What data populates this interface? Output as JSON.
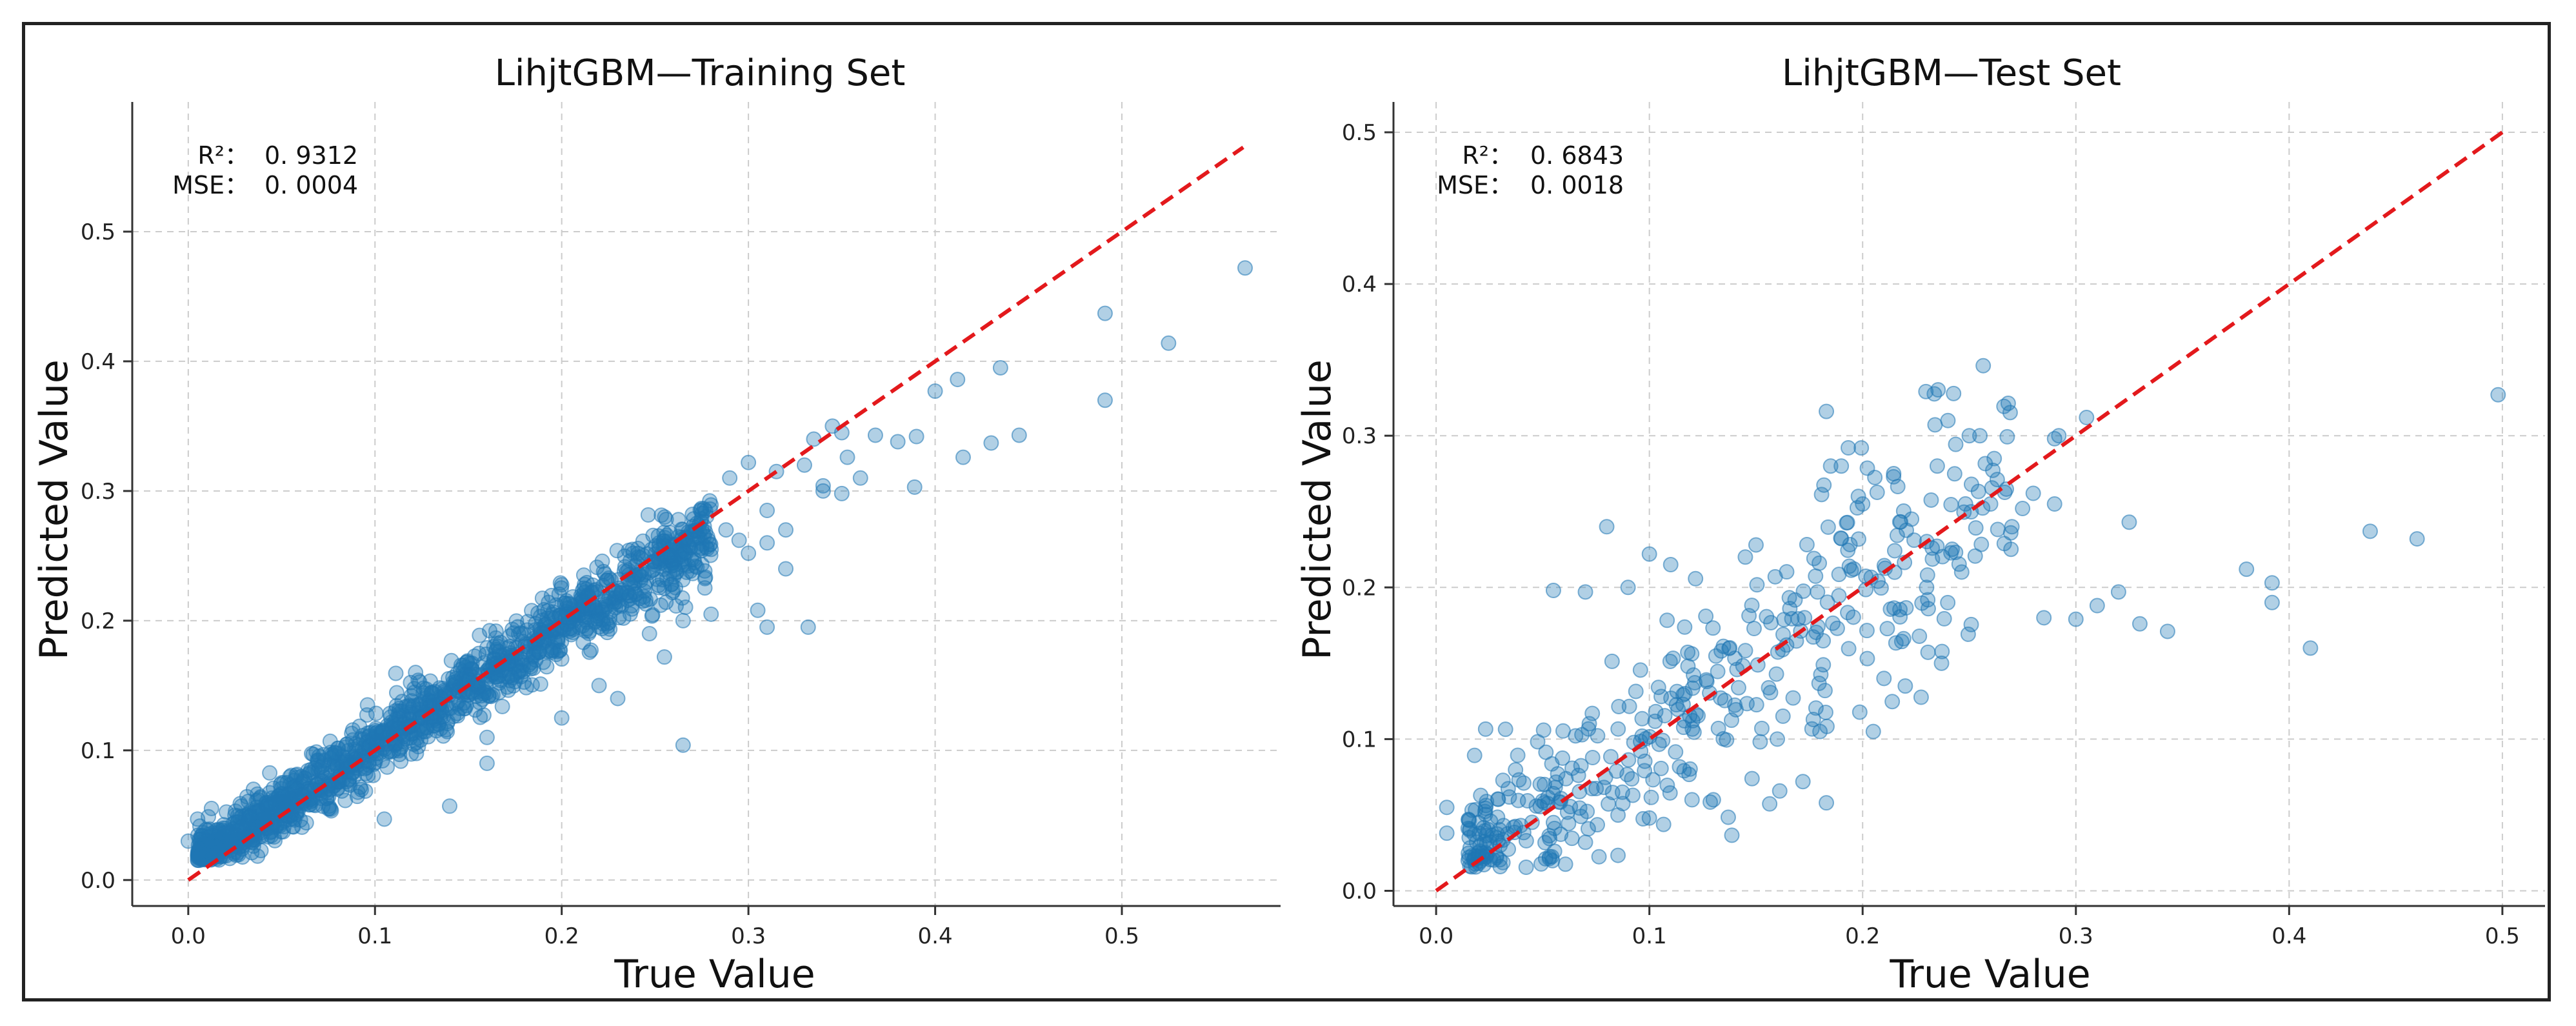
{
  "colors": {
    "point": "#1f77b4",
    "identity_line": "#e3191c"
  },
  "chart_data": [
    {
      "id": "train",
      "type": "scatter",
      "title": "LihjtGBM—Training Set",
      "xlabel": "True Value",
      "ylabel": "Predicted Value",
      "xlim": [
        -0.03,
        0.585
      ],
      "ylim": [
        -0.02,
        0.6
      ],
      "xticks": [
        "0.0",
        "0.1",
        "0.2",
        "0.3",
        "0.4",
        "0.5"
      ],
      "xtick_values": [
        0.0,
        0.1,
        0.2,
        0.3,
        0.4,
        0.5
      ],
      "yticks": [
        "0.0",
        "0.1",
        "0.2",
        "0.3",
        "0.4",
        "0.5"
      ],
      "ytick_values": [
        0.0,
        0.1,
        0.2,
        0.3,
        0.4,
        0.5
      ],
      "identity_line": [
        [
          0.0,
          0.0
        ],
        [
          0.565,
          0.565
        ]
      ],
      "grid": true,
      "stats": {
        "r2_label": "R²：",
        "r2_value": "0. 9312",
        "mse_label": "MSE：",
        "mse_value": "0. 0004"
      },
      "generated_cloud": {
        "n": 1600,
        "seed": 11,
        "x_min": 0.005,
        "x_max": 0.28,
        "noise": 0.013
      },
      "highlighted_points": [
        [
          0.566,
          0.472
        ],
        [
          0.525,
          0.414
        ],
        [
          0.491,
          0.437
        ],
        [
          0.491,
          0.37
        ],
        [
          0.435,
          0.395
        ],
        [
          0.445,
          0.343
        ],
        [
          0.43,
          0.337
        ],
        [
          0.415,
          0.326
        ],
        [
          0.412,
          0.386
        ],
        [
          0.4,
          0.377
        ],
        [
          0.389,
          0.303
        ],
        [
          0.39,
          0.342
        ],
        [
          0.38,
          0.338
        ],
        [
          0.368,
          0.343
        ],
        [
          0.36,
          0.31
        ],
        [
          0.353,
          0.326
        ],
        [
          0.35,
          0.298
        ],
        [
          0.34,
          0.304
        ],
        [
          0.345,
          0.35
        ],
        [
          0.335,
          0.34
        ],
        [
          0.33,
          0.32
        ],
        [
          0.332,
          0.195
        ],
        [
          0.305,
          0.208
        ],
        [
          0.31,
          0.195
        ],
        [
          0.31,
          0.285
        ],
        [
          0.32,
          0.27
        ],
        [
          0.3,
          0.252
        ],
        [
          0.295,
          0.262
        ],
        [
          0.288,
          0.27
        ],
        [
          0.28,
          0.255
        ],
        [
          0.265,
          0.104
        ],
        [
          0.255,
          0.172
        ],
        [
          0.247,
          0.19
        ],
        [
          0.23,
          0.14
        ],
        [
          0.22,
          0.15
        ],
        [
          0.2,
          0.125
        ],
        [
          0.16,
          0.11
        ],
        [
          0.16,
          0.09
        ],
        [
          0.14,
          0.057
        ],
        [
          0.105,
          0.047
        ],
        [
          0.08,
          0.076
        ],
        [
          0.05,
          0.075
        ],
        [
          0.055,
          0.05
        ],
        [
          0.025,
          0.05
        ],
        [
          0.02,
          0.04
        ],
        [
          0.005,
          0.047
        ],
        [
          0.015,
          0.018
        ],
        [
          0.0,
          0.03
        ],
        [
          0.28,
          0.205
        ],
        [
          0.265,
          0.2
        ],
        [
          0.27,
          0.282
        ],
        [
          0.29,
          0.31
        ],
        [
          0.3,
          0.322
        ],
        [
          0.315,
          0.315
        ],
        [
          0.35,
          0.345
        ],
        [
          0.34,
          0.3
        ],
        [
          0.32,
          0.24
        ],
        [
          0.31,
          0.26
        ]
      ]
    },
    {
      "id": "test",
      "type": "scatter",
      "title": "LihjtGBM—Test Set",
      "xlabel": "True Value",
      "ylabel": "Predicted Value",
      "xlim": [
        -0.02,
        0.52
      ],
      "ylim": [
        -0.01,
        0.52
      ],
      "xticks": [
        "0.0",
        "0.1",
        "0.2",
        "0.3",
        "0.4",
        "0.5"
      ],
      "xtick_values": [
        0.0,
        0.1,
        0.2,
        0.3,
        0.4,
        0.5
      ],
      "yticks": [
        "0.0",
        "0.1",
        "0.2",
        "0.3",
        "0.4",
        "0.5"
      ],
      "ytick_values": [
        0.0,
        0.1,
        0.2,
        0.3,
        0.4,
        0.5
      ],
      "identity_line": [
        [
          0.0,
          0.0
        ],
        [
          0.5,
          0.5
        ]
      ],
      "grid": true,
      "stats": {
        "r2_label": "R²：",
        "r2_value": "0. 6843",
        "mse_label": "MSE：",
        "mse_value": "0. 0018"
      },
      "generated_cloud": {
        "n": 420,
        "seed": 23,
        "x_min": 0.015,
        "x_max": 0.27,
        "noise": 0.035
      },
      "highlighted_points": [
        [
          0.498,
          0.327
        ],
        [
          0.46,
          0.232
        ],
        [
          0.438,
          0.237
        ],
        [
          0.41,
          0.16
        ],
        [
          0.392,
          0.203
        ],
        [
          0.392,
          0.19
        ],
        [
          0.38,
          0.212
        ],
        [
          0.343,
          0.171
        ],
        [
          0.33,
          0.176
        ],
        [
          0.32,
          0.197
        ],
        [
          0.325,
          0.243
        ],
        [
          0.305,
          0.312
        ],
        [
          0.3,
          0.179
        ],
        [
          0.31,
          0.188
        ],
        [
          0.29,
          0.298
        ],
        [
          0.292,
          0.3
        ],
        [
          0.28,
          0.262
        ],
        [
          0.285,
          0.18
        ],
        [
          0.29,
          0.255
        ],
        [
          0.275,
          0.252
        ],
        [
          0.25,
          0.3
        ],
        [
          0.255,
          0.3
        ],
        [
          0.24,
          0.31
        ],
        [
          0.235,
          0.28
        ],
        [
          0.237,
          0.15
        ],
        [
          0.22,
          0.135
        ],
        [
          0.21,
          0.14
        ],
        [
          0.2,
          0.255
        ],
        [
          0.198,
          0.26
        ],
        [
          0.183,
          0.316
        ],
        [
          0.185,
          0.28
        ],
        [
          0.19,
          0.28
        ],
        [
          0.18,
          0.105
        ],
        [
          0.183,
          0.058
        ],
        [
          0.172,
          0.072
        ],
        [
          0.16,
          0.1
        ],
        [
          0.145,
          0.22
        ],
        [
          0.15,
          0.228
        ],
        [
          0.11,
          0.215
        ],
        [
          0.08,
          0.24
        ],
        [
          0.1,
          0.222
        ],
        [
          0.09,
          0.2
        ],
        [
          0.07,
          0.197
        ],
        [
          0.055,
          0.198
        ],
        [
          0.02,
          0.045
        ],
        [
          0.005,
          0.055
        ],
        [
          0.02,
          0.022
        ],
        [
          0.03,
          0.03
        ],
        [
          0.005,
          0.038
        ],
        [
          0.07,
          0.032
        ],
        [
          0.055,
          0.045
        ],
        [
          0.1,
          0.048
        ],
        [
          0.12,
          0.06
        ],
        [
          0.13,
          0.06
        ],
        [
          0.27,
          0.24
        ],
        [
          0.26,
          0.255
        ],
        [
          0.23,
          0.2
        ],
        [
          0.215,
          0.21
        ],
        [
          0.205,
          0.105
        ]
      ]
    }
  ]
}
